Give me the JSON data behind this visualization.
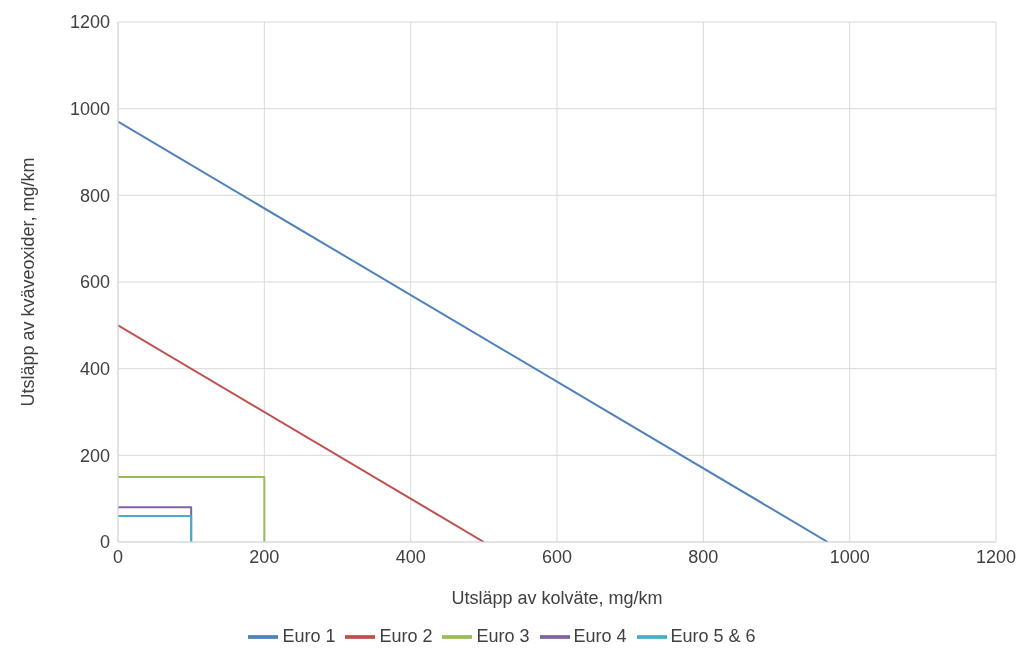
{
  "chart_data": {
    "type": "line",
    "xlabel": "Utsläpp av kolväte, mg/km",
    "ylabel": "Utsläpp av kväveoxider, mg/km",
    "xlim": [
      0,
      1200
    ],
    "xticks": [
      0,
      200,
      400,
      600,
      800,
      1000,
      1200
    ],
    "ylim": [
      0,
      1200
    ],
    "yticks": [
      0,
      200,
      400,
      600,
      800,
      1000,
      1200
    ],
    "grid": true,
    "legend": "bottom",
    "marker": "none",
    "line_style": "solid",
    "series": [
      {
        "name": "Euro 1",
        "color": "#4f81bd",
        "x": [
          0,
          970
        ],
        "values": [
          970,
          0
        ]
      },
      {
        "name": "Euro 2",
        "color": "#c0504d",
        "x": [
          0,
          500
        ],
        "values": [
          500,
          0
        ]
      },
      {
        "name": "Euro 3",
        "color": "#9bbb59",
        "x": [
          0,
          200,
          200
        ],
        "values": [
          150,
          150,
          0
        ]
      },
      {
        "name": "Euro 4",
        "color": "#8064a2",
        "x": [
          0,
          100,
          100
        ],
        "values": [
          80,
          80,
          0
        ]
      },
      {
        "name": "Euro 5 & 6",
        "color": "#4bacc6",
        "x": [
          0,
          100,
          100
        ],
        "values": [
          60,
          60,
          0
        ]
      }
    ]
  }
}
